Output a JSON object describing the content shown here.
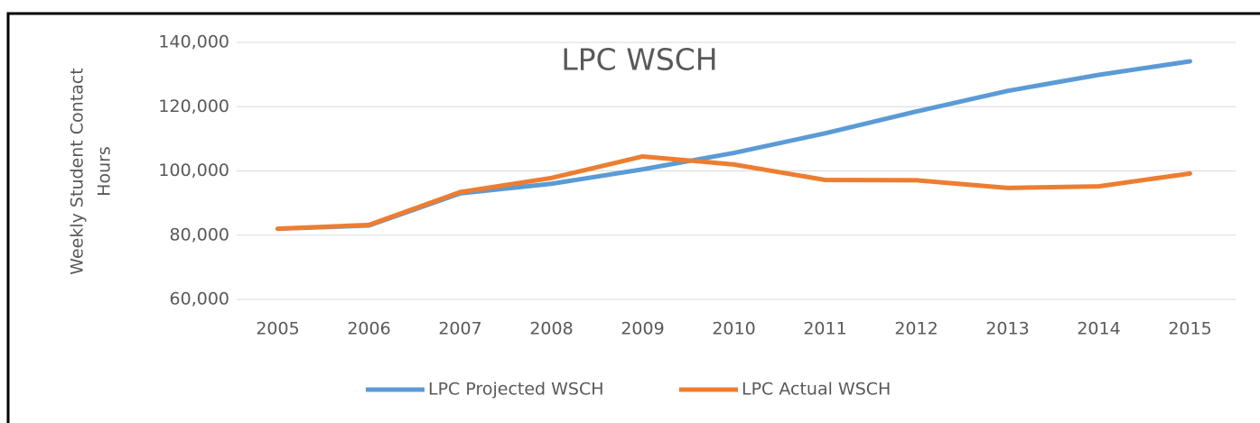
{
  "chart_data": {
    "type": "line",
    "title": "LPC WSCH",
    "ylabel": [
      "Weekly Student  Contact",
      "Hours"
    ],
    "categories": [
      "2005",
      "2006",
      "2007",
      "2008",
      "2009",
      "2010",
      "2011",
      "2012",
      "2013",
      "2014",
      "2015"
    ],
    "series": [
      {
        "name": "LPC Projected WSCH",
        "color": "#5b9bd5",
        "values": [
          82000,
          83000,
          93000,
          96000,
          100500,
          105600,
          111700,
          118500,
          124900,
          129900,
          134100
        ]
      },
      {
        "name": "LPC Actual WSCH",
        "color": "#ed7d31",
        "values": [
          82000,
          83200,
          93400,
          97800,
          104500,
          102000,
          97200,
          97100,
          94700,
          95200,
          99200
        ]
      }
    ],
    "ylim": [
      60000,
      140000
    ],
    "yticks": [
      {
        "value": 60000,
        "label": "60,000"
      },
      {
        "value": 80000,
        "label": "80,000"
      },
      {
        "value": 100000,
        "label": "100,000"
      },
      {
        "value": 120000,
        "label": "120,000"
      },
      {
        "value": 140000,
        "label": "140,000"
      }
    ],
    "grid": true,
    "legend": "bottom"
  }
}
